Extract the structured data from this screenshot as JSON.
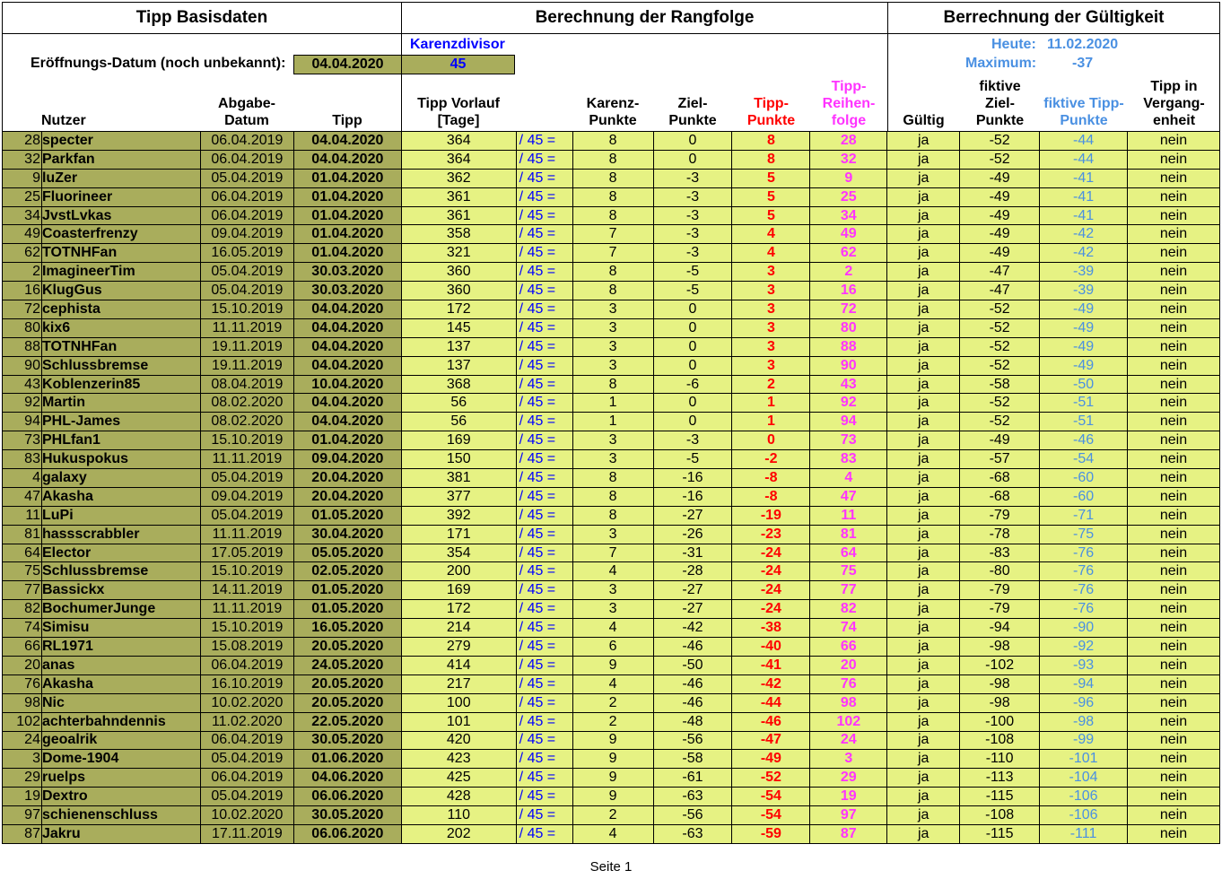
{
  "sections": {
    "basisdaten": "Tipp Basisdaten",
    "rangfolge": "Berechnung der Rangfolge",
    "gueltigkeit": "Berrechnung der Gültigkeit"
  },
  "meta": {
    "eroeffnung_label": "Eröffnungs-Datum (noch unbekannt):",
    "eroeffnung_value": "04.04.2020",
    "karenz_label": "Karenzdivisor",
    "karenz_value": "45",
    "heute_label": "Heute:",
    "heute_value": "11.02.2020",
    "maximum_label": "Maximum:",
    "maximum_value": "-37"
  },
  "columns": {
    "nutzer": "Nutzer",
    "abgabe": [
      "Abgabe-",
      "Datum"
    ],
    "tipp": "Tipp",
    "vorlauf": [
      "Tipp Vorlauf",
      "[Tage]"
    ],
    "karenz": [
      "Karenz-",
      "Punkte"
    ],
    "ziel": [
      "Ziel-",
      "Punkte"
    ],
    "tipp_punkte": [
      "Tipp-",
      "Punkte"
    ],
    "reihenfolge": [
      "Tipp-",
      "Reihen-",
      "folge"
    ],
    "gueltig": "Gültig",
    "fiktive_ziel": [
      "fiktive",
      "Ziel-",
      "Punkte"
    ],
    "fiktive_tipp": [
      "fiktive Tipp-",
      "Punkte"
    ],
    "vergangenheit": [
      "Tipp in",
      "Vergang-",
      "enheit"
    ]
  },
  "divisor_text": "/ 45 =",
  "rows": [
    {
      "rank": "28",
      "name": "specter",
      "abgabe": "06.04.2019",
      "tipp": "04.04.2020",
      "vorlauf": "364",
      "karenz": "8",
      "ziel": "0",
      "punkte": "8",
      "folge": "28",
      "gueltig": "ja",
      "fziel": "-52",
      "ftipp": "-44",
      "verg": "nein"
    },
    {
      "rank": "32",
      "name": "Parkfan",
      "abgabe": "06.04.2019",
      "tipp": "04.04.2020",
      "vorlauf": "364",
      "karenz": "8",
      "ziel": "0",
      "punkte": "8",
      "folge": "32",
      "gueltig": "ja",
      "fziel": "-52",
      "ftipp": "-44",
      "verg": "nein"
    },
    {
      "rank": "9",
      "name": "luZer",
      "abgabe": "05.04.2019",
      "tipp": "01.04.2020",
      "vorlauf": "362",
      "karenz": "8",
      "ziel": "-3",
      "punkte": "5",
      "folge": "9",
      "gueltig": "ja",
      "fziel": "-49",
      "ftipp": "-41",
      "verg": "nein"
    },
    {
      "rank": "25",
      "name": "Fluorineer",
      "abgabe": "06.04.2019",
      "tipp": "01.04.2020",
      "vorlauf": "361",
      "karenz": "8",
      "ziel": "-3",
      "punkte": "5",
      "folge": "25",
      "gueltig": "ja",
      "fziel": "-49",
      "ftipp": "-41",
      "verg": "nein"
    },
    {
      "rank": "34",
      "name": "JvstLvkas",
      "abgabe": "06.04.2019",
      "tipp": "01.04.2020",
      "vorlauf": "361",
      "karenz": "8",
      "ziel": "-3",
      "punkte": "5",
      "folge": "34",
      "gueltig": "ja",
      "fziel": "-49",
      "ftipp": "-41",
      "verg": "nein"
    },
    {
      "rank": "49",
      "name": "Coasterfrenzy",
      "abgabe": "09.04.2019",
      "tipp": "01.04.2020",
      "vorlauf": "358",
      "karenz": "7",
      "ziel": "-3",
      "punkte": "4",
      "folge": "49",
      "gueltig": "ja",
      "fziel": "-49",
      "ftipp": "-42",
      "verg": "nein"
    },
    {
      "rank": "62",
      "name": "TOTNHFan",
      "abgabe": "16.05.2019",
      "tipp": "01.04.2020",
      "vorlauf": "321",
      "karenz": "7",
      "ziel": "-3",
      "punkte": "4",
      "folge": "62",
      "gueltig": "ja",
      "fziel": "-49",
      "ftipp": "-42",
      "verg": "nein"
    },
    {
      "rank": "2",
      "name": "ImagineerTim",
      "abgabe": "05.04.2019",
      "tipp": "30.03.2020",
      "vorlauf": "360",
      "karenz": "8",
      "ziel": "-5",
      "punkte": "3",
      "folge": "2",
      "gueltig": "ja",
      "fziel": "-47",
      "ftipp": "-39",
      "verg": "nein"
    },
    {
      "rank": "16",
      "name": "KlugGus",
      "abgabe": "05.04.2019",
      "tipp": "30.03.2020",
      "vorlauf": "360",
      "karenz": "8",
      "ziel": "-5",
      "punkte": "3",
      "folge": "16",
      "gueltig": "ja",
      "fziel": "-47",
      "ftipp": "-39",
      "verg": "nein"
    },
    {
      "rank": "72",
      "name": "cephista",
      "abgabe": "15.10.2019",
      "tipp": "04.04.2020",
      "vorlauf": "172",
      "karenz": "3",
      "ziel": "0",
      "punkte": "3",
      "folge": "72",
      "gueltig": "ja",
      "fziel": "-52",
      "ftipp": "-49",
      "verg": "nein"
    },
    {
      "rank": "80",
      "name": "kix6",
      "abgabe": "11.11.2019",
      "tipp": "04.04.2020",
      "vorlauf": "145",
      "karenz": "3",
      "ziel": "0",
      "punkte": "3",
      "folge": "80",
      "gueltig": "ja",
      "fziel": "-52",
      "ftipp": "-49",
      "verg": "nein"
    },
    {
      "rank": "88",
      "name": "TOTNHFan",
      "abgabe": "19.11.2019",
      "tipp": "04.04.2020",
      "vorlauf": "137",
      "karenz": "3",
      "ziel": "0",
      "punkte": "3",
      "folge": "88",
      "gueltig": "ja",
      "fziel": "-52",
      "ftipp": "-49",
      "verg": "nein"
    },
    {
      "rank": "90",
      "name": "Schlussbremse",
      "abgabe": "19.11.2019",
      "tipp": "04.04.2020",
      "vorlauf": "137",
      "karenz": "3",
      "ziel": "0",
      "punkte": "3",
      "folge": "90",
      "gueltig": "ja",
      "fziel": "-52",
      "ftipp": "-49",
      "verg": "nein"
    },
    {
      "rank": "43",
      "name": "Koblenzerin85",
      "abgabe": "08.04.2019",
      "tipp": "10.04.2020",
      "vorlauf": "368",
      "karenz": "8",
      "ziel": "-6",
      "punkte": "2",
      "folge": "43",
      "gueltig": "ja",
      "fziel": "-58",
      "ftipp": "-50",
      "verg": "nein"
    },
    {
      "rank": "92",
      "name": "Martin",
      "abgabe": "08.02.2020",
      "tipp": "04.04.2020",
      "vorlauf": "56",
      "karenz": "1",
      "ziel": "0",
      "punkte": "1",
      "folge": "92",
      "gueltig": "ja",
      "fziel": "-52",
      "ftipp": "-51",
      "verg": "nein"
    },
    {
      "rank": "94",
      "name": "PHL-James",
      "abgabe": "08.02.2020",
      "tipp": "04.04.2020",
      "vorlauf": "56",
      "karenz": "1",
      "ziel": "0",
      "punkte": "1",
      "folge": "94",
      "gueltig": "ja",
      "fziel": "-52",
      "ftipp": "-51",
      "verg": "nein"
    },
    {
      "rank": "73",
      "name": "PHLfan1",
      "abgabe": "15.10.2019",
      "tipp": "01.04.2020",
      "vorlauf": "169",
      "karenz": "3",
      "ziel": "-3",
      "punkte": "0",
      "folge": "73",
      "gueltig": "ja",
      "fziel": "-49",
      "ftipp": "-46",
      "verg": "nein"
    },
    {
      "rank": "83",
      "name": "Hukuspokus",
      "abgabe": "11.11.2019",
      "tipp": "09.04.2020",
      "vorlauf": "150",
      "karenz": "3",
      "ziel": "-5",
      "punkte": "-2",
      "folge": "83",
      "gueltig": "ja",
      "fziel": "-57",
      "ftipp": "-54",
      "verg": "nein"
    },
    {
      "rank": "4",
      "name": "galaxy",
      "abgabe": "05.04.2019",
      "tipp": "20.04.2020",
      "vorlauf": "381",
      "karenz": "8",
      "ziel": "-16",
      "punkte": "-8",
      "folge": "4",
      "gueltig": "ja",
      "fziel": "-68",
      "ftipp": "-60",
      "verg": "nein"
    },
    {
      "rank": "47",
      "name": "Akasha",
      "abgabe": "09.04.2019",
      "tipp": "20.04.2020",
      "vorlauf": "377",
      "karenz": "8",
      "ziel": "-16",
      "punkte": "-8",
      "folge": "47",
      "gueltig": "ja",
      "fziel": "-68",
      "ftipp": "-60",
      "verg": "nein"
    },
    {
      "rank": "11",
      "name": "LuPi",
      "abgabe": "05.04.2019",
      "tipp": "01.05.2020",
      "vorlauf": "392",
      "karenz": "8",
      "ziel": "-27",
      "punkte": "-19",
      "folge": "11",
      "gueltig": "ja",
      "fziel": "-79",
      "ftipp": "-71",
      "verg": "nein"
    },
    {
      "rank": "81",
      "name": "hassscrabbler",
      "abgabe": "11.11.2019",
      "tipp": "30.04.2020",
      "vorlauf": "171",
      "karenz": "3",
      "ziel": "-26",
      "punkte": "-23",
      "folge": "81",
      "gueltig": "ja",
      "fziel": "-78",
      "ftipp": "-75",
      "verg": "nein"
    },
    {
      "rank": "64",
      "name": "Elector",
      "abgabe": "17.05.2019",
      "tipp": "05.05.2020",
      "vorlauf": "354",
      "karenz": "7",
      "ziel": "-31",
      "punkte": "-24",
      "folge": "64",
      "gueltig": "ja",
      "fziel": "-83",
      "ftipp": "-76",
      "verg": "nein"
    },
    {
      "rank": "75",
      "name": "Schlussbremse",
      "abgabe": "15.10.2019",
      "tipp": "02.05.2020",
      "vorlauf": "200",
      "karenz": "4",
      "ziel": "-28",
      "punkte": "-24",
      "folge": "75",
      "gueltig": "ja",
      "fziel": "-80",
      "ftipp": "-76",
      "verg": "nein"
    },
    {
      "rank": "77",
      "name": "Bassickx",
      "abgabe": "14.11.2019",
      "tipp": "01.05.2020",
      "vorlauf": "169",
      "karenz": "3",
      "ziel": "-27",
      "punkte": "-24",
      "folge": "77",
      "gueltig": "ja",
      "fziel": "-79",
      "ftipp": "-76",
      "verg": "nein"
    },
    {
      "rank": "82",
      "name": "BochumerJunge",
      "abgabe": "11.11.2019",
      "tipp": "01.05.2020",
      "vorlauf": "172",
      "karenz": "3",
      "ziel": "-27",
      "punkte": "-24",
      "folge": "82",
      "gueltig": "ja",
      "fziel": "-79",
      "ftipp": "-76",
      "verg": "nein"
    },
    {
      "rank": "74",
      "name": "Simisu",
      "abgabe": "15.10.2019",
      "tipp": "16.05.2020",
      "vorlauf": "214",
      "karenz": "4",
      "ziel": "-42",
      "punkte": "-38",
      "folge": "74",
      "gueltig": "ja",
      "fziel": "-94",
      "ftipp": "-90",
      "verg": "nein"
    },
    {
      "rank": "66",
      "name": "RL1971",
      "abgabe": "15.08.2019",
      "tipp": "20.05.2020",
      "vorlauf": "279",
      "karenz": "6",
      "ziel": "-46",
      "punkte": "-40",
      "folge": "66",
      "gueltig": "ja",
      "fziel": "-98",
      "ftipp": "-92",
      "verg": "nein"
    },
    {
      "rank": "20",
      "name": "anas",
      "abgabe": "06.04.2019",
      "tipp": "24.05.2020",
      "vorlauf": "414",
      "karenz": "9",
      "ziel": "-50",
      "punkte": "-41",
      "folge": "20",
      "gueltig": "ja",
      "fziel": "-102",
      "ftipp": "-93",
      "verg": "nein"
    },
    {
      "rank": "76",
      "name": "Akasha",
      "abgabe": "16.10.2019",
      "tipp": "20.05.2020",
      "vorlauf": "217",
      "karenz": "4",
      "ziel": "-46",
      "punkte": "-42",
      "folge": "76",
      "gueltig": "ja",
      "fziel": "-98",
      "ftipp": "-94",
      "verg": "nein"
    },
    {
      "rank": "98",
      "name": "Nic",
      "abgabe": "10.02.2020",
      "tipp": "20.05.2020",
      "vorlauf": "100",
      "karenz": "2",
      "ziel": "-46",
      "punkte": "-44",
      "folge": "98",
      "gueltig": "ja",
      "fziel": "-98",
      "ftipp": "-96",
      "verg": "nein"
    },
    {
      "rank": "102",
      "name": "achterbahndennis",
      "abgabe": "11.02.2020",
      "tipp": "22.05.2020",
      "vorlauf": "101",
      "karenz": "2",
      "ziel": "-48",
      "punkte": "-46",
      "folge": "102",
      "gueltig": "ja",
      "fziel": "-100",
      "ftipp": "-98",
      "verg": "nein"
    },
    {
      "rank": "24",
      "name": "geoalrik",
      "abgabe": "06.04.2019",
      "tipp": "30.05.2020",
      "vorlauf": "420",
      "karenz": "9",
      "ziel": "-56",
      "punkte": "-47",
      "folge": "24",
      "gueltig": "ja",
      "fziel": "-108",
      "ftipp": "-99",
      "verg": "nein"
    },
    {
      "rank": "3",
      "name": "Dome-1904",
      "abgabe": "05.04.2019",
      "tipp": "01.06.2020",
      "vorlauf": "423",
      "karenz": "9",
      "ziel": "-58",
      "punkte": "-49",
      "folge": "3",
      "gueltig": "ja",
      "fziel": "-110",
      "ftipp": "-101",
      "verg": "nein"
    },
    {
      "rank": "29",
      "name": "ruelps",
      "abgabe": "06.04.2019",
      "tipp": "04.06.2020",
      "vorlauf": "425",
      "karenz": "9",
      "ziel": "-61",
      "punkte": "-52",
      "folge": "29",
      "gueltig": "ja",
      "fziel": "-113",
      "ftipp": "-104",
      "verg": "nein"
    },
    {
      "rank": "19",
      "name": "Dextro",
      "abgabe": "05.04.2019",
      "tipp": "06.06.2020",
      "vorlauf": "428",
      "karenz": "9",
      "ziel": "-63",
      "punkte": "-54",
      "folge": "19",
      "gueltig": "ja",
      "fziel": "-115",
      "ftipp": "-106",
      "verg": "nein"
    },
    {
      "rank": "97",
      "name": "schienenschluss",
      "abgabe": "10.02.2020",
      "tipp": "30.05.2020",
      "vorlauf": "110",
      "karenz": "2",
      "ziel": "-56",
      "punkte": "-54",
      "folge": "97",
      "gueltig": "ja",
      "fziel": "-108",
      "ftipp": "-106",
      "verg": "nein"
    },
    {
      "rank": "87",
      "name": "Jakru",
      "abgabe": "17.11.2019",
      "tipp": "06.06.2020",
      "vorlauf": "202",
      "karenz": "4",
      "ziel": "-63",
      "punkte": "-59",
      "folge": "87",
      "gueltig": "ja",
      "fziel": "-115",
      "ftipp": "-111",
      "verg": "nein"
    }
  ],
  "footer": "Seite 1"
}
